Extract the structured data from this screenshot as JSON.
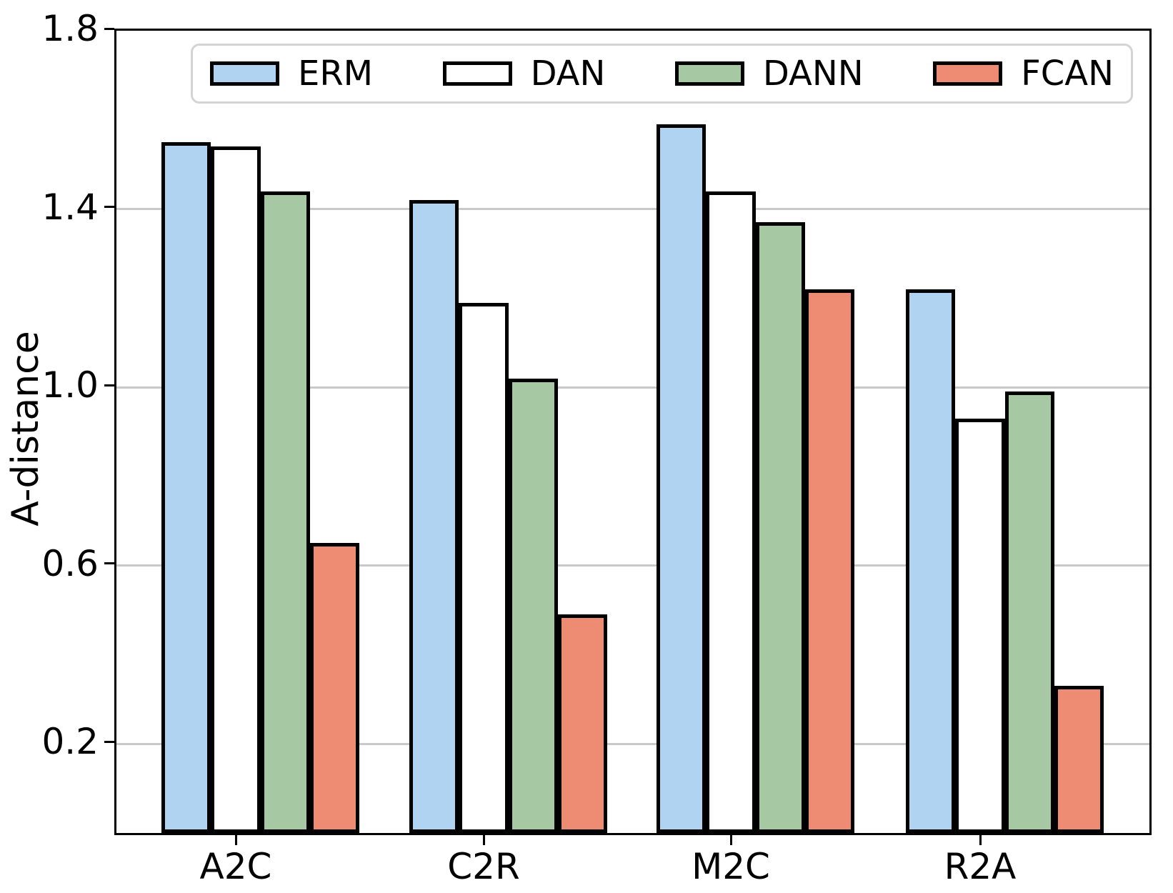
{
  "chart_data": {
    "type": "bar",
    "title": "",
    "xlabel": "",
    "ylabel": "A-distance",
    "categories": [
      "A2C",
      "C2R",
      "M2C",
      "R2A"
    ],
    "series": [
      {
        "name": "ERM",
        "color": "#afd3f0",
        "values": [
          1.55,
          1.42,
          1.59,
          1.22
        ]
      },
      {
        "name": "DAN",
        "color": "#ffffff",
        "values": [
          1.54,
          1.19,
          1.44,
          0.93
        ]
      },
      {
        "name": "DANN",
        "color": "#a6c9a3",
        "values": [
          1.44,
          1.02,
          1.37,
          0.99
        ]
      },
      {
        "name": "FCAN",
        "color": "#ee8c73",
        "values": [
          0.65,
          0.49,
          1.22,
          0.33
        ]
      }
    ],
    "ylim": [
      0,
      1.8
    ],
    "yticks": [
      0.2,
      0.6,
      1.0,
      1.4,
      1.8
    ],
    "grid": "horizontal",
    "grid_color": "#c9c9c9",
    "bar_edge_color": "#000000",
    "legend_position": "top-center-inside"
  }
}
